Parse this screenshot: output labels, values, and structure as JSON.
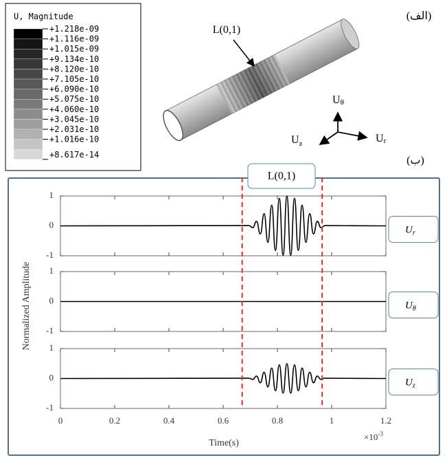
{
  "top": {
    "label": "(الف)",
    "legend": {
      "title": "U, Magnitude",
      "entries": [
        {
          "label": "+1.218e-09",
          "color": "#000000"
        },
        {
          "label": "+1.116e-09",
          "color": "#151515"
        },
        {
          "label": "+1.015e-09",
          "color": "#262626"
        },
        {
          "label": "+9.134e-10",
          "color": "#363636"
        },
        {
          "label": "+8.120e-10",
          "color": "#474747"
        },
        {
          "label": "+7.105e-10",
          "color": "#585858"
        },
        {
          "label": "+6.090e-10",
          "color": "#696969"
        },
        {
          "label": "+5.075e-10",
          "color": "#7a7a7a"
        },
        {
          "label": "+4.060e-10",
          "color": "#8c8c8c"
        },
        {
          "label": "+3.045e-10",
          "color": "#9e9e9e"
        },
        {
          "label": "+2.031e-10",
          "color": "#b1b1b1"
        },
        {
          "label": "+1.016e-10",
          "color": "#c4c4c4"
        },
        {
          "label": "+8.617e-14",
          "color": "#d8d8d8"
        }
      ]
    },
    "mode_label": "L(0,1)",
    "axes": {
      "theta": {
        "main": "U",
        "sub": "θ"
      },
      "z": {
        "main": "U",
        "sub": "z"
      },
      "r": {
        "main": "U",
        "sub": "r"
      }
    }
  },
  "bottom_label": "(ب)",
  "chart_data": {
    "type": "line",
    "mode_label": "L(0,1)",
    "xlabel": "Time(s)",
    "ylabel": "Normalized Amplitude",
    "x_multiplier": {
      "base": "×10",
      "exponent": "-3"
    },
    "xlim": [
      0,
      1.2
    ],
    "xticks": [
      0,
      0.2,
      0.4,
      0.6,
      0.8,
      1,
      1.2
    ],
    "ylim": [
      -1,
      1
    ],
    "yticks": [
      -1,
      0,
      1
    ],
    "window": {
      "color": "#e8291f",
      "x": [
        0.67,
        0.965
      ]
    },
    "panels": [
      {
        "label": {
          "main": "U",
          "sub": "r"
        },
        "series": [
          {
            "color": "#000000",
            "x": [
              0,
              0.695,
              0.709,
              0.723,
              0.737,
              0.751,
              0.765,
              0.779,
              0.793,
              0.807,
              0.821,
              0.835,
              0.849,
              0.863,
              0.877,
              0.891,
              0.905,
              0.919,
              0.933,
              0.947,
              0.961,
              0.975,
              1.2
            ],
            "values": [
              0,
              0.01,
              -0.06,
              0.15,
              -0.27,
              0.41,
              -0.55,
              0.69,
              -0.82,
              0.92,
              -0.98,
              1,
              -0.98,
              0.92,
              -0.82,
              0.69,
              -0.55,
              0.41,
              -0.27,
              0.15,
              -0.06,
              0.01,
              0
            ]
          }
        ]
      },
      {
        "label": {
          "main": "U",
          "sub": "θ"
        },
        "series": [
          {
            "color": "#000000",
            "x": [
              0,
              1.2
            ],
            "values": [
              0,
              0
            ]
          }
        ]
      },
      {
        "label": {
          "main": "U",
          "sub": "z"
        },
        "series": [
          {
            "color": "#000000",
            "x": [
              0,
              0.695,
              0.709,
              0.723,
              0.737,
              0.751,
              0.765,
              0.779,
              0.793,
              0.807,
              0.821,
              0.835,
              0.849,
              0.863,
              0.877,
              0.891,
              0.905,
              0.919,
              0.933,
              0.947,
              0.961,
              0.975,
              1.2
            ],
            "values": [
              0,
              0.01,
              -0.03,
              0.08,
              -0.14,
              0.21,
              -0.28,
              0.35,
              -0.41,
              0.46,
              -0.49,
              0.5,
              -0.49,
              0.46,
              -0.41,
              0.35,
              -0.28,
              0.21,
              -0.14,
              0.08,
              -0.03,
              0.01,
              0
            ]
          }
        ]
      }
    ]
  }
}
